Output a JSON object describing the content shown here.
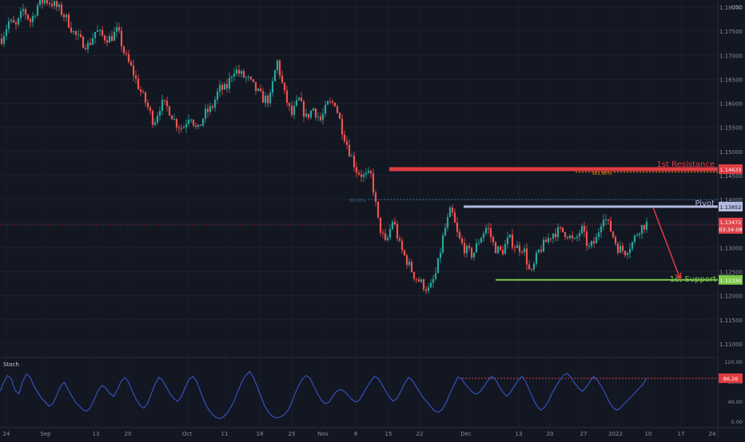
{
  "chart_data": [
    {
      "type": "candlestick",
      "currency": "USD",
      "x_labels": [
        "24",
        "Sep",
        "13",
        "20",
        "Oct",
        "11",
        "18",
        "25",
        "Nov",
        "8",
        "15",
        "22",
        "Dec",
        "13",
        "20",
        "27",
        "2022",
        "10",
        "17",
        "24"
      ],
      "y_ticks": [
        "1.18000",
        "1.17500",
        "1.17000",
        "1.16500",
        "1.16000",
        "1.15500",
        "1.15000",
        "1.14500",
        "1.14000",
        "1.13500",
        "1.13000",
        "1.12500",
        "1.12000",
        "1.11500",
        "1.11000"
      ],
      "price_range": [
        1.1075,
        1.1815
      ],
      "price_path": [
        [
          0,
          1.1735
        ],
        [
          1,
          1.177
        ],
        [
          2,
          1.176
        ],
        [
          3,
          1.1795
        ],
        [
          4,
          1.177
        ],
        [
          5,
          1.1805
        ],
        [
          6,
          1.1815
        ],
        [
          7,
          1.1808
        ],
        [
          8,
          1.1795
        ],
        [
          9,
          1.1775
        ],
        [
          10,
          1.1745
        ],
        [
          11,
          1.1728
        ],
        [
          12,
          1.172
        ],
        [
          13,
          1.1752
        ],
        [
          14,
          1.1738
        ],
        [
          15,
          1.1735
        ],
        [
          16,
          1.1752
        ],
        [
          17,
          1.17
        ],
        [
          18,
          1.167
        ],
        [
          19,
          1.163
        ],
        [
          20,
          1.1598
        ],
        [
          21,
          1.156
        ],
        [
          22,
          1.16
        ],
        [
          23,
          1.159
        ],
        [
          24,
          1.156
        ],
        [
          25,
          1.1548
        ],
        [
          26,
          1.158
        ],
        [
          27,
          1.154
        ],
        [
          28,
          1.1578
        ],
        [
          29,
          1.159
        ],
        [
          30,
          1.163
        ],
        [
          31,
          1.163
        ],
        [
          32,
          1.1672
        ],
        [
          33,
          1.166
        ],
        [
          34,
          1.165
        ],
        [
          35,
          1.163
        ],
        [
          36,
          1.161
        ],
        [
          37,
          1.1608
        ],
        [
          38,
          1.169
        ],
        [
          39,
          1.162
        ],
        [
          40,
          1.1575
        ],
        [
          41,
          1.1608
        ],
        [
          42,
          1.157
        ],
        [
          43,
          1.159
        ],
        [
          44,
          1.1565
        ],
        [
          45,
          1.1598
        ],
        [
          46,
          1.1602
        ],
        [
          47,
          1.1545
        ],
        [
          48,
          1.15
        ],
        [
          49,
          1.146
        ],
        [
          50,
          1.1448
        ],
        [
          51,
          1.145
        ],
        [
          52,
          1.135
        ],
        [
          53,
          1.1305
        ],
        [
          54,
          1.136
        ],
        [
          55,
          1.13
        ],
        [
          56,
          1.127
        ],
        [
          57,
          1.124
        ],
        [
          58,
          1.1225
        ],
        [
          59,
          1.121
        ],
        [
          60,
          1.125
        ],
        [
          61,
          1.133
        ],
        [
          62,
          1.138
        ],
        [
          63,
          1.132
        ],
        [
          64,
          1.1295
        ],
        [
          65,
          1.1285
        ],
        [
          66,
          1.132
        ],
        [
          67,
          1.1345
        ],
        [
          68,
          1.13
        ],
        [
          69,
          1.129
        ],
        [
          70,
          1.132
        ],
        [
          71,
          1.13
        ],
        [
          72,
          1.13
        ],
        [
          73,
          1.124
        ],
        [
          74,
          1.129
        ],
        [
          75,
          1.131
        ],
        [
          76,
          1.133
        ],
        [
          77,
          1.1335
        ],
        [
          78,
          1.133
        ],
        [
          79,
          1.131
        ],
        [
          80,
          1.134
        ],
        [
          81,
          1.1298
        ],
        [
          82,
          1.1315
        ],
        [
          83,
          1.137
        ],
        [
          84,
          1.1338
        ],
        [
          85,
          1.13
        ],
        [
          86,
          1.1292
        ],
        [
          87,
          1.131
        ],
        [
          88,
          1.134
        ],
        [
          89,
          1.135
        ]
      ],
      "levels": [
        {
          "name": "1st Resistance",
          "value": 1.14633,
          "label": "1.14633",
          "color": "#e03c43"
        },
        {
          "name": "Pivot",
          "value": 1.13852,
          "label": "1.13852",
          "color": "#b2bbe0"
        },
        {
          "name": "1st Support",
          "value": 1.1233,
          "label": "1.12330",
          "color": "#7ec84a"
        }
      ],
      "fib_levels": [
        {
          "label": "161.80%",
          "value": 1.1457,
          "color": "#ff9800"
        },
        {
          "label": "50.00%",
          "value": 1.14,
          "color": "#3f6f8f"
        }
      ],
      "current_price": {
        "value": 1.13472,
        "label": "1.13472",
        "countdown": "03:34:08",
        "color": "#e0444c"
      },
      "forecast_arrow": {
        "from": [
          0.877,
          1.1382
        ],
        "to": [
          0.913,
          1.1235
        ],
        "color": "#e03c43"
      }
    },
    {
      "type": "line",
      "title": "Stoch",
      "y_ticks": [
        "120.00",
        "80.00",
        "40.00",
        "0.00"
      ],
      "ylim": [
        -10,
        125
      ],
      "values": [
        60,
        78,
        92,
        85,
        62,
        55,
        80,
        95,
        88,
        70,
        58,
        46,
        38,
        30,
        35,
        52,
        70,
        78,
        64,
        50,
        38,
        30,
        22,
        20,
        28,
        45,
        62,
        72,
        66,
        56,
        50,
        62,
        80,
        88,
        78,
        60,
        44,
        32,
        26,
        35,
        55,
        75,
        88,
        82,
        68,
        55,
        45,
        40,
        50,
        68,
        84,
        90,
        80,
        60,
        40,
        25,
        15,
        8,
        5,
        8,
        15,
        28,
        42,
        62,
        80,
        92,
        100,
        88,
        70,
        50,
        30,
        18,
        10,
        6,
        8,
        12,
        20,
        35,
        55,
        72,
        85,
        92,
        86,
        70,
        55,
        42,
        35,
        38,
        50,
        60,
        64,
        60,
        52,
        44,
        38,
        42,
        55,
        68,
        80,
        90,
        86,
        74,
        60,
        48,
        40,
        46,
        60,
        76,
        88,
        82,
        70,
        58,
        46,
        38,
        28,
        20,
        18,
        24,
        38,
        56,
        72,
        88,
        86,
        74,
        66,
        58,
        54,
        60,
        70,
        82,
        90,
        84,
        70,
        58,
        50,
        58,
        70,
        82,
        90,
        80,
        62,
        44,
        30,
        22,
        28,
        40,
        56,
        70,
        82,
        92,
        96,
        88,
        76,
        66,
        60,
        68,
        80,
        90,
        82,
        70,
        56,
        40,
        28,
        22,
        26,
        34,
        42,
        50,
        58,
        66,
        74,
        86
      ],
      "level": {
        "value": 86.26,
        "label": "86.26",
        "color": "#e03c43"
      },
      "line_color": "#3a5ad8"
    }
  ]
}
